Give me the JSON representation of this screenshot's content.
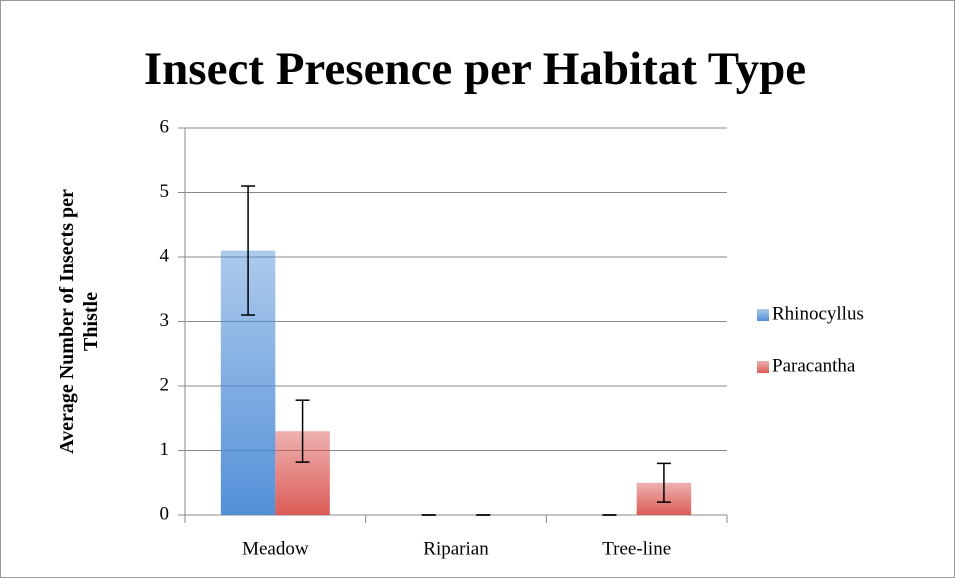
{
  "chart_data": {
    "type": "bar",
    "title": "Insect Presence per Habitat Type",
    "y_label": "Average Number of Insects per Thistle",
    "categories": [
      "Meadow",
      "Riparian",
      "Tree-line"
    ],
    "series": [
      {
        "name": "Rhinocyllus",
        "color": "#4a8ad6",
        "values": [
          4.1,
          0,
          0
        ],
        "errors": [
          1.0,
          0,
          0
        ]
      },
      {
        "name": "Paracantha",
        "color": "#d9534f",
        "values": [
          1.3,
          0,
          0.5
        ],
        "errors": [
          0.48,
          0,
          0.3
        ]
      }
    ],
    "ylim": [
      0,
      6
    ],
    "yticks": [
      0,
      1,
      2,
      3,
      4,
      5,
      6
    ],
    "grid": true,
    "legend": "right"
  }
}
